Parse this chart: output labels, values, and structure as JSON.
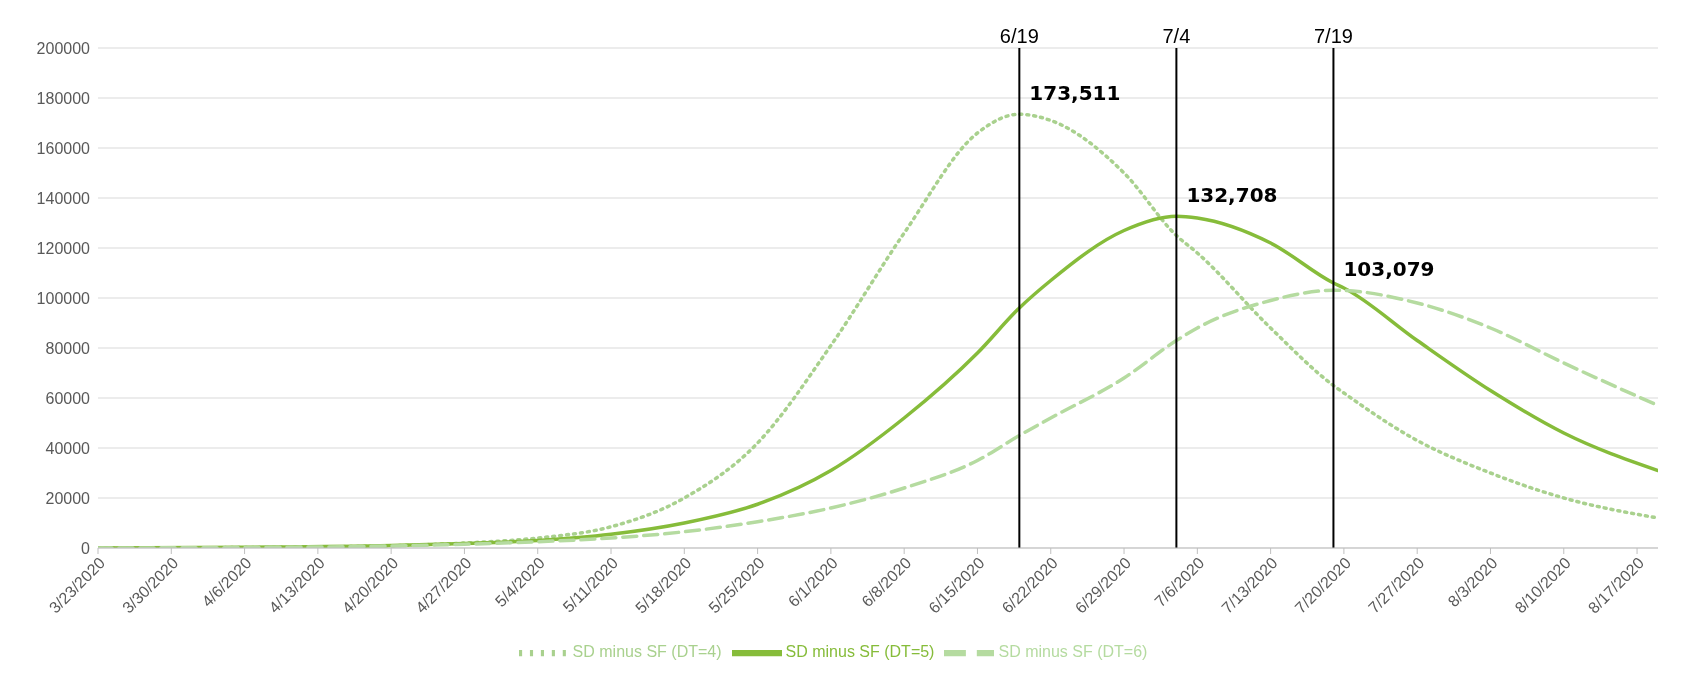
{
  "chart_data": {
    "type": "line",
    "x": [
      "2020-03-23",
      "2020-04-06",
      "2020-04-20",
      "2020-04-27",
      "2020-05-04",
      "2020-05-11",
      "2020-05-18",
      "2020-05-25",
      "2020-06-01",
      "2020-06-08",
      "2020-06-15",
      "2020-06-19",
      "2020-06-22",
      "2020-06-29",
      "2020-07-04",
      "2020-07-06",
      "2020-07-13",
      "2020-07-19",
      "2020-07-20",
      "2020-07-27",
      "2020-08-03",
      "2020-08-10",
      "2020-08-19"
    ],
    "series": [
      {
        "name": "SD minus SF (DT=4)",
        "color": "#a9d18e",
        "line_style": "dotted",
        "values": [
          0,
          200,
          900,
          2000,
          4000,
          8500,
          20000,
          42000,
          81000,
          126000,
          166000,
          173511,
          171000,
          150000,
          125000,
          118000,
          88000,
          65000,
          62000,
          43000,
          30000,
          20000,
          12000
        ]
      },
      {
        "name": "SD minus SF (DT=5)",
        "color": "#86bc3a",
        "line_style": "solid",
        "values": [
          0,
          300,
          1000,
          1800,
          3000,
          5500,
          10000,
          17500,
          31000,
          52000,
          78000,
          96000,
          107000,
          127000,
          132708,
          132000,
          122000,
          106000,
          104000,
          83000,
          63000,
          46000,
          31000
        ]
      },
      {
        "name": "SD minus SF (DT=6)",
        "color": "#b5dba0",
        "line_style": "dashed",
        "values": [
          0,
          200,
          800,
          1500,
          2500,
          4000,
          6500,
          10500,
          16000,
          24000,
          35000,
          45000,
          52000,
          68000,
          83000,
          88000,
          99000,
          103079,
          103000,
          98000,
          88000,
          74000,
          57000
        ]
      }
    ],
    "xlim": [
      "2020-03-23",
      "2020-08-19"
    ],
    "xticks": [
      {
        "value": "2020-03-23",
        "label": "3/23/2020"
      },
      {
        "value": "2020-03-30",
        "label": "3/30/2020"
      },
      {
        "value": "2020-04-06",
        "label": "4/6/2020"
      },
      {
        "value": "2020-04-13",
        "label": "4/13/2020"
      },
      {
        "value": "2020-04-20",
        "label": "4/20/2020"
      },
      {
        "value": "2020-04-27",
        "label": "4/27/2020"
      },
      {
        "value": "2020-05-04",
        "label": "5/4/2020"
      },
      {
        "value": "2020-05-11",
        "label": "5/11/2020"
      },
      {
        "value": "2020-05-18",
        "label": "5/18/2020"
      },
      {
        "value": "2020-05-25",
        "label": "5/25/2020"
      },
      {
        "value": "2020-06-01",
        "label": "6/1/2020"
      },
      {
        "value": "2020-06-08",
        "label": "6/8/2020"
      },
      {
        "value": "2020-06-15",
        "label": "6/15/2020"
      },
      {
        "value": "2020-06-22",
        "label": "6/22/2020"
      },
      {
        "value": "2020-06-29",
        "label": "6/29/2020"
      },
      {
        "value": "2020-07-06",
        "label": "7/6/2020"
      },
      {
        "value": "2020-07-13",
        "label": "7/13/2020"
      },
      {
        "value": "2020-07-20",
        "label": "7/20/2020"
      },
      {
        "value": "2020-07-27",
        "label": "7/27/2020"
      },
      {
        "value": "2020-08-03",
        "label": "8/3/2020"
      },
      {
        "value": "2020-08-10",
        "label": "8/10/2020"
      },
      {
        "value": "2020-08-17",
        "label": "8/17/2020"
      }
    ],
    "ylim": [
      0,
      200000
    ],
    "yticks": [
      0,
      20000,
      40000,
      60000,
      80000,
      100000,
      120000,
      140000,
      160000,
      180000,
      200000
    ],
    "grid": "y",
    "legend": "bottom",
    "marker": "none",
    "ref_lines": [
      {
        "axis": "x",
        "value": "2020-06-19",
        "label": "6/19",
        "color": "#000000"
      },
      {
        "axis": "x",
        "value": "2020-07-04",
        "label": "7/4",
        "color": "#000000"
      },
      {
        "axis": "x",
        "value": "2020-07-19",
        "label": "7/19",
        "color": "#000000"
      }
    ],
    "annotations": [
      {
        "text": "173,511",
        "x": "2020-06-19",
        "y": 173511
      },
      {
        "text": "132,708",
        "x": "2020-07-04",
        "y": 132708
      },
      {
        "text": "103,079",
        "x": "2020-07-19",
        "y": 103079
      }
    ]
  }
}
